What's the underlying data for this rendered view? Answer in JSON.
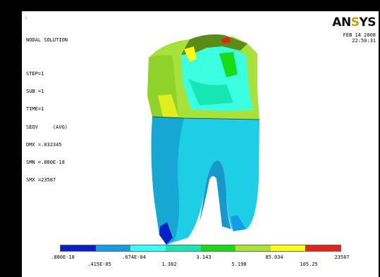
{
  "window_number": "1",
  "logo": {
    "text_main": "AN",
    "text_accent": "S",
    "text_end": "YS"
  },
  "info": {
    "title": "NODAL SOLUTION",
    "step": "STEP=1",
    "sub": "SUB =1",
    "time": "TIME=1",
    "result": "SEQV     (AVG)",
    "dmx": "DMX =.032345",
    "smn": "SMN =.880E-18",
    "smx": "SMX =23587"
  },
  "date": "FEB 14 2008",
  "time": "22:50:31",
  "colors": {
    "background": "#000000",
    "viewport": "#ffffff",
    "legend": [
      "#0a1fc8",
      "#149ce6",
      "#35ffff",
      "#15e6b4",
      "#19dc19",
      "#a8e632",
      "#ffff14",
      "#e62319"
    ]
  },
  "legend_labels_top": [
    ".880E-18",
    ".674E-04",
    "3.143",
    "85.034",
    "23587"
  ],
  "legend_labels_bottom": [
    ".415E-05",
    "1.382",
    "5.198",
    "105.25"
  ]
}
